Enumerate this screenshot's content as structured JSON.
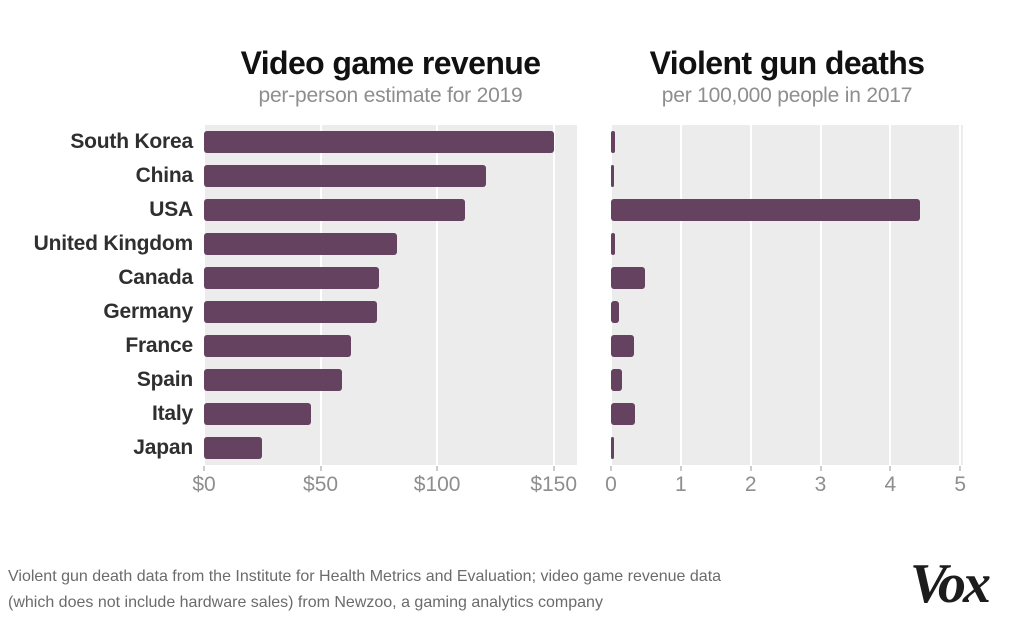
{
  "categories": [
    "South Korea",
    "China",
    "USA",
    "United Kingdom",
    "Canada",
    "Germany",
    "France",
    "Spain",
    "Italy",
    "Japan"
  ],
  "chart_data": [
    {
      "type": "bar",
      "orientation": "horizontal",
      "title": "Video game revenue",
      "subtitle": "per-person estimate for 2019",
      "categories": [
        "South Korea",
        "China",
        "USA",
        "United Kingdom",
        "Canada",
        "Germany",
        "France",
        "Spain",
        "Italy",
        "Japan"
      ],
      "values": [
        150,
        121,
        112,
        83,
        75,
        74,
        63,
        59,
        46,
        25
      ],
      "axis": {
        "ticks": [
          "$0",
          "$50",
          "$100",
          "$150"
        ],
        "tick_values": [
          0,
          50,
          100,
          150
        ],
        "xlim": [
          0,
          160
        ],
        "plot_max": 160
      },
      "grid": true,
      "legend": false
    },
    {
      "type": "bar",
      "orientation": "horizontal",
      "title": "Violent gun deaths",
      "subtitle": "per 100,000 people in 2017",
      "categories": [
        "South Korea",
        "China",
        "USA",
        "United Kingdom",
        "Canada",
        "Germany",
        "France",
        "Spain",
        "Italy",
        "Japan"
      ],
      "values": [
        0.06,
        0.05,
        4.43,
        0.06,
        0.48,
        0.12,
        0.33,
        0.16,
        0.35,
        0.03
      ],
      "axis": {
        "ticks": [
          "0",
          "1",
          "2",
          "3",
          "4",
          "5"
        ],
        "tick_values": [
          0,
          1,
          2,
          3,
          4,
          5
        ],
        "xlim": [
          0,
          5
        ],
        "plot_max": 5.04
      },
      "grid": true,
      "legend": false
    }
  ],
  "footer": {
    "line1": "Violent gun death data from the Institute for Health Metrics and Evaluation; video game revenue data",
    "line2": "(which does not include hardware sales) from Newzoo, a gaming analytics company"
  },
  "logo": {
    "text": "Vox"
  },
  "colors": {
    "bar": "#654360",
    "plot_bg": "#ececec",
    "grid": "#ffffff",
    "title": "#111111",
    "subtitle": "#8e8e8e",
    "label": "#2f2f2f",
    "tick": "#8e8e8e",
    "footer": "#6b6b6b"
  }
}
